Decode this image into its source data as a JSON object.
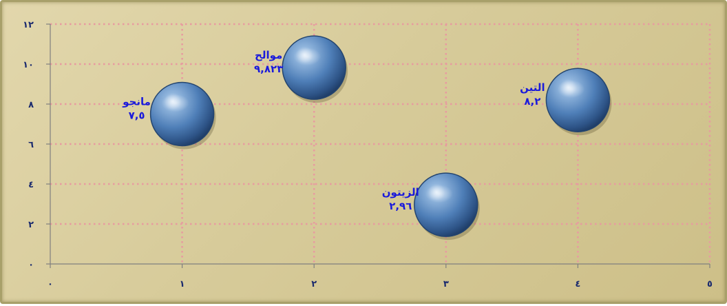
{
  "chart_data": {
    "type": "scatter",
    "variant": "bubble",
    "title": "",
    "xlabel": "",
    "ylabel": "",
    "xlim": [
      0,
      5
    ],
    "ylim": [
      0,
      12
    ],
    "x_ticks": [
      "٠",
      "١",
      "٢",
      "٣",
      "٤",
      "٥"
    ],
    "y_ticks": [
      "٠",
      "٢",
      "٤",
      "٦",
      "٨",
      "١٠",
      "١٢"
    ],
    "grid": true,
    "legend": "none",
    "marker_color": "#4f7fb8",
    "background_color": "#d9cf9f",
    "grid_color": "#e89aa0",
    "label_color": "#1a1adb",
    "points": [
      {
        "name": "مانجو",
        "value_label": "٧,٥",
        "x": 1,
        "y": 7.5
      },
      {
        "name": "موالح",
        "value_label": "٩,٨٢٣",
        "x": 2,
        "y": 9.823
      },
      {
        "name": "الزيتون",
        "value_label": "٢,٩٦",
        "x": 3,
        "y": 2.96
      },
      {
        "name": "التين",
        "value_label": "٨,٢",
        "x": 4,
        "y": 8.2
      }
    ]
  }
}
